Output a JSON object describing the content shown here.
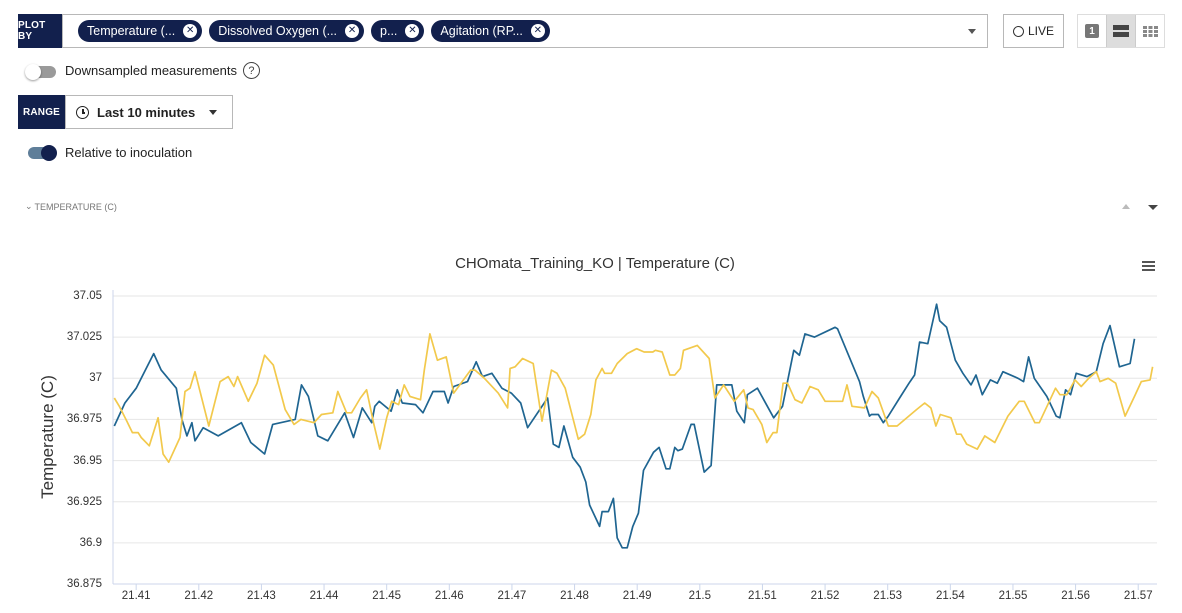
{
  "plot_by": {
    "label": "PLOT BY",
    "chips": [
      "Temperature (...",
      "Dissolved Oxygen (...",
      "p...",
      "Agitation (RP..."
    ],
    "remove_glyph": "✕"
  },
  "live_button": {
    "label": "LIVE"
  },
  "view_toggle": {
    "single_label": "1",
    "selected": "rows"
  },
  "downsampled": {
    "label": "Downsampled measurements",
    "enabled": false,
    "help": "?"
  },
  "range": {
    "label": "RANGE",
    "value": "Last 10 minutes"
  },
  "relative": {
    "label": "Relative to inoculation",
    "enabled": true
  },
  "section": {
    "title": "TEMPERATURE (C)"
  },
  "colors": {
    "navy": "#12204d",
    "blue_series": "#1f6591",
    "yellow_series": "#f2c94c"
  },
  "chart_data": {
    "type": "line",
    "title": "CHOmata_Training_KO | Temperature (C)",
    "xlabel": "",
    "ylabel": "Temperature (C)",
    "xlim": [
      21.4063,
      21.573
    ],
    "ylim": [
      36.875,
      37.05
    ],
    "xticks": [
      "21.41",
      "21.42",
      "21.43",
      "21.44",
      "21.45",
      "21.46",
      "21.47",
      "21.48",
      "21.49",
      "21.5",
      "21.51",
      "21.52",
      "21.53",
      "21.54",
      "21.55",
      "21.56",
      "21.57"
    ],
    "yticks": [
      "37.05",
      "37.025",
      "37",
      "36.975",
      "36.95",
      "36.925",
      "36.9",
      "36.875"
    ],
    "grid": true,
    "series": [
      {
        "name": "series-blue",
        "color": "#1f6591",
        "points": [
          [
            21.4065,
            36.971
          ],
          [
            21.4082,
            36.985
          ],
          [
            21.41,
            36.994
          ],
          [
            21.4128,
            37.015
          ],
          [
            21.414,
            37.005
          ],
          [
            21.4164,
            36.994
          ],
          [
            21.4173,
            36.975
          ],
          [
            21.4181,
            36.965
          ],
          [
            21.4189,
            36.973
          ],
          [
            21.4194,
            36.962
          ],
          [
            21.4207,
            36.97
          ],
          [
            21.4231,
            36.965
          ],
          [
            21.4268,
            36.973
          ],
          [
            21.4283,
            36.961
          ],
          [
            21.4305,
            36.954
          ],
          [
            21.4318,
            36.972
          ],
          [
            21.4354,
            36.975
          ],
          [
            21.4364,
            36.996
          ],
          [
            21.4375,
            36.989
          ],
          [
            21.439,
            36.965
          ],
          [
            21.4406,
            36.962
          ],
          [
            21.4433,
            36.979
          ],
          [
            21.4447,
            36.964
          ],
          [
            21.4461,
            36.982
          ],
          [
            21.4476,
            36.973
          ],
          [
            21.4481,
            36.983
          ],
          [
            21.4488,
            36.986
          ],
          [
            21.4507,
            36.98
          ],
          [
            21.4517,
            36.993
          ],
          [
            21.4525,
            36.985
          ],
          [
            21.4546,
            36.984
          ],
          [
            21.4558,
            36.979
          ],
          [
            21.4574,
            36.992
          ],
          [
            21.4592,
            36.992
          ],
          [
            21.4598,
            36.985
          ],
          [
            21.4607,
            36.995
          ],
          [
            21.4629,
            36.998
          ],
          [
            21.4643,
            37.01
          ],
          [
            21.4653,
            37.001
          ],
          [
            21.4668,
            37.003
          ],
          [
            21.4684,
            36.994
          ],
          [
            21.4699,
            36.991
          ],
          [
            21.4714,
            36.985
          ],
          [
            21.4725,
            36.97
          ],
          [
            21.4757,
            36.988
          ],
          [
            21.4766,
            36.96
          ],
          [
            21.4775,
            36.958
          ],
          [
            21.4783,
            36.971
          ],
          [
            21.4797,
            36.952
          ],
          [
            21.4809,
            36.946
          ],
          [
            21.4818,
            36.937
          ],
          [
            21.4824,
            36.923
          ],
          [
            21.484,
            36.91
          ],
          [
            21.4844,
            36.919
          ],
          [
            21.4854,
            36.919
          ],
          [
            21.4862,
            36.927
          ],
          [
            21.4868,
            36.903
          ],
          [
            21.4876,
            36.897
          ],
          [
            21.4884,
            36.897
          ],
          [
            21.4893,
            36.91
          ],
          [
            21.4902,
            36.918
          ],
          [
            21.491,
            36.944
          ],
          [
            21.4926,
            36.955
          ],
          [
            21.4935,
            36.958
          ],
          [
            21.4946,
            36.945
          ],
          [
            21.4952,
            36.945
          ],
          [
            21.496,
            36.958
          ],
          [
            21.4965,
            36.956
          ],
          [
            21.4972,
            36.957
          ],
          [
            21.4986,
            36.972
          ],
          [
            21.4991,
            36.972
          ],
          [
            21.5007,
            36.943
          ],
          [
            21.5018,
            36.947
          ],
          [
            21.5027,
            36.996
          ],
          [
            21.5051,
            36.996
          ],
          [
            21.5059,
            36.98
          ],
          [
            21.5071,
            36.973
          ],
          [
            21.5076,
            36.99
          ],
          [
            21.5092,
            36.994
          ],
          [
            21.5118,
            36.976
          ],
          [
            21.5132,
            36.983
          ],
          [
            21.515,
            37.017
          ],
          [
            21.5159,
            37.014
          ],
          [
            21.5168,
            37.027
          ],
          [
            21.5183,
            37.025
          ],
          [
            21.5216,
            37.031
          ],
          [
            21.522,
            37.03
          ],
          [
            21.5255,
            36.998
          ],
          [
            21.5261,
            36.989
          ],
          [
            21.5271,
            36.977
          ],
          [
            21.5274,
            36.978
          ],
          [
            21.5285,
            36.978
          ],
          [
            21.5293,
            36.973
          ],
          [
            21.5301,
            36.977
          ],
          [
            21.5319,
            36.988
          ],
          [
            21.5334,
            36.997
          ],
          [
            21.5343,
            37.002
          ],
          [
            21.5351,
            37.022
          ],
          [
            21.5364,
            37.021
          ],
          [
            21.5378,
            37.045
          ],
          [
            21.5383,
            37.035
          ],
          [
            21.5394,
            37.031
          ],
          [
            21.5408,
            37.011
          ],
          [
            21.542,
            37.003
          ],
          [
            21.5433,
            36.996
          ],
          [
            21.5441,
            37.002
          ],
          [
            21.5451,
            36.99
          ],
          [
            21.5464,
            36.999
          ],
          [
            21.5475,
            36.997
          ],
          [
            21.5484,
            37.004
          ],
          [
            21.5508,
            37.0
          ],
          [
            21.5517,
            36.998
          ],
          [
            21.5525,
            37.013
          ],
          [
            21.5534,
            37.0
          ],
          [
            21.5554,
            36.989
          ],
          [
            21.5569,
            36.977
          ],
          [
            21.5575,
            36.976
          ],
          [
            21.5584,
            36.993
          ],
          [
            21.5592,
            36.99
          ],
          [
            21.5601,
            37.003
          ],
          [
            21.5618,
            37.001
          ],
          [
            21.5633,
            37.004
          ],
          [
            21.5644,
            37.021
          ],
          [
            21.5655,
            37.032
          ],
          [
            21.567,
            37.007
          ],
          [
            21.5687,
            37.009
          ],
          [
            21.5694,
            37.024
          ]
        ]
      },
      {
        "name": "series-yellow",
        "color": "#f2c94c",
        "points": [
          [
            21.4065,
            36.988
          ],
          [
            21.4073,
            36.983
          ],
          [
            21.4085,
            36.974
          ],
          [
            21.4094,
            36.967
          ],
          [
            21.4103,
            36.967
          ],
          [
            21.4108,
            36.964
          ],
          [
            21.4121,
            36.959
          ],
          [
            21.4135,
            36.976
          ],
          [
            21.4143,
            36.954
          ],
          [
            21.4152,
            36.949
          ],
          [
            21.417,
            36.964
          ],
          [
            21.4178,
            36.992
          ],
          [
            21.4186,
            36.994
          ],
          [
            21.4194,
            37.004
          ],
          [
            21.4204,
            36.989
          ],
          [
            21.4216,
            36.971
          ],
          [
            21.4234,
            36.998
          ],
          [
            21.4247,
            37.001
          ],
          [
            21.4256,
            36.995
          ],
          [
            21.4262,
            37.001
          ],
          [
            21.4279,
            36.986
          ],
          [
            21.4293,
            36.997
          ],
          [
            21.4305,
            37.014
          ],
          [
            21.4319,
            37.008
          ],
          [
            21.4338,
            36.981
          ],
          [
            21.4352,
            36.972
          ],
          [
            21.4363,
            36.975
          ],
          [
            21.4384,
            36.973
          ],
          [
            21.4396,
            36.978
          ],
          [
            21.4414,
            36.979
          ],
          [
            21.4422,
            36.992
          ],
          [
            21.4436,
            36.979
          ],
          [
            21.4444,
            36.979
          ],
          [
            21.4458,
            36.988
          ],
          [
            21.4468,
            36.993
          ],
          [
            21.4479,
            36.973
          ],
          [
            21.4489,
            36.957
          ],
          [
            21.45,
            36.976
          ],
          [
            21.4508,
            36.986
          ],
          [
            21.4519,
            36.984
          ],
          [
            21.4528,
            36.996
          ],
          [
            21.4537,
            36.989
          ],
          [
            21.4554,
            36.987
          ],
          [
            21.456,
            37.005
          ],
          [
            21.4569,
            37.027
          ],
          [
            21.4581,
            37.011
          ],
          [
            21.4595,
            37.013
          ],
          [
            21.4607,
            36.991
          ],
          [
            21.4634,
            37.005
          ],
          [
            21.4641,
            37.005
          ],
          [
            21.4656,
            37.0
          ],
          [
            21.4678,
            36.991
          ],
          [
            21.4693,
            36.982
          ],
          [
            21.4697,
            37.006
          ],
          [
            21.4705,
            37.007
          ],
          [
            21.4717,
            37.012
          ],
          [
            21.4734,
            37.009
          ],
          [
            21.4748,
            36.974
          ],
          [
            21.4763,
            37.005
          ],
          [
            21.4772,
            37.003
          ],
          [
            21.4785,
            36.994
          ],
          [
            21.4806,
            36.963
          ],
          [
            21.4816,
            36.966
          ],
          [
            21.4826,
            36.978
          ],
          [
            21.4834,
            36.999
          ],
          [
            21.4844,
            37.006
          ],
          [
            21.4848,
            37.003
          ],
          [
            21.4859,
            37.003
          ],
          [
            21.4868,
            37.009
          ],
          [
            21.4884,
            37.015
          ],
          [
            21.4899,
            37.018
          ],
          [
            21.4911,
            37.016
          ],
          [
            21.4925,
            37.016
          ],
          [
            21.4929,
            37.017
          ],
          [
            21.494,
            37.016
          ],
          [
            21.4952,
            37.002
          ],
          [
            21.496,
            37.002
          ],
          [
            21.4969,
            37.006
          ],
          [
            21.4974,
            37.017
          ],
          [
            21.4996,
            37.02
          ],
          [
            21.5015,
            37.012
          ],
          [
            21.5024,
            36.988
          ],
          [
            21.5038,
            36.996
          ],
          [
            21.5055,
            36.986
          ],
          [
            21.507,
            36.993
          ],
          [
            21.5077,
            36.982
          ],
          [
            21.5085,
            36.981
          ],
          [
            21.5099,
            36.972
          ],
          [
            21.5107,
            36.961
          ],
          [
            21.5117,
            36.967
          ],
          [
            21.5123,
            36.967
          ],
          [
            21.5133,
            36.997
          ],
          [
            21.514,
            36.997
          ],
          [
            21.5152,
            36.987
          ],
          [
            21.5163,
            36.985
          ],
          [
            21.5176,
            36.995
          ],
          [
            21.5189,
            36.993
          ],
          [
            21.52,
            36.986
          ],
          [
            21.5228,
            36.986
          ],
          [
            21.5235,
            36.996
          ],
          [
            21.5243,
            36.983
          ],
          [
            21.5263,
            36.982
          ],
          [
            21.5275,
            36.992
          ],
          [
            21.5285,
            36.988
          ],
          [
            21.5301,
            36.971
          ],
          [
            21.5315,
            36.971
          ],
          [
            21.5346,
            36.981
          ],
          [
            21.5359,
            36.985
          ],
          [
            21.5369,
            36.982
          ],
          [
            21.5377,
            36.971
          ],
          [
            21.5384,
            36.978
          ],
          [
            21.5401,
            36.976
          ],
          [
            21.541,
            36.966
          ],
          [
            21.5417,
            36.966
          ],
          [
            21.5426,
            36.96
          ],
          [
            21.5443,
            36.957
          ],
          [
            21.5455,
            36.965
          ],
          [
            21.5471,
            36.961
          ],
          [
            21.5492,
            36.977
          ],
          [
            21.551,
            36.986
          ],
          [
            21.5518,
            36.986
          ],
          [
            21.5535,
            36.973
          ],
          [
            21.5542,
            36.973
          ],
          [
            21.5568,
            36.994
          ],
          [
            21.5575,
            36.99
          ],
          [
            21.5586,
            36.99
          ],
          [
            21.5599,
            36.999
          ],
          [
            21.5609,
            36.995
          ],
          [
            21.5621,
            37.0
          ],
          [
            21.5633,
            37.004
          ],
          [
            21.5639,
            36.998
          ],
          [
            21.5652,
            37.0
          ],
          [
            21.5664,
            36.997
          ],
          [
            21.5679,
            36.977
          ],
          [
            21.5694,
            36.989
          ],
          [
            21.5705,
            36.998
          ],
          [
            21.5719,
            36.999
          ],
          [
            21.5723,
            37.007
          ]
        ]
      }
    ]
  }
}
